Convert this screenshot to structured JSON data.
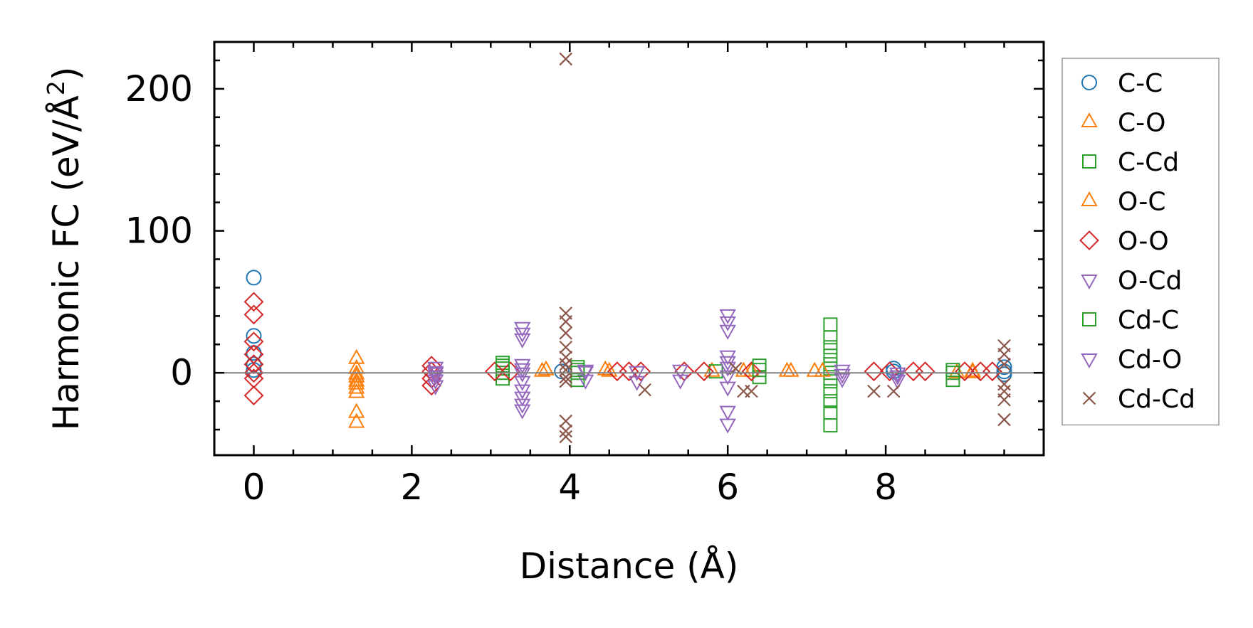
{
  "chart_data": {
    "type": "scatter",
    "title": "",
    "xlabel": "Distance (Å)",
    "ylabel": "Harmonic FC (eV/Å",
    "ylabel_sup": "2",
    "ylabel_end": ")",
    "xlim": [
      -0.5,
      10.0
    ],
    "ylim": [
      -58,
      233
    ],
    "xticks": [
      0,
      2,
      4,
      6,
      8
    ],
    "xtick_labels": [
      "0",
      "2",
      "4",
      "6",
      "8"
    ],
    "yticks": [
      0,
      100,
      200
    ],
    "ytick_labels": [
      "0",
      "100",
      "200"
    ],
    "x_minor_step": 0.5,
    "y_minor_step": 20,
    "zero_line": 0,
    "legend_location": "right-outside",
    "series": [
      {
        "name": "C-C",
        "marker": "circle",
        "color": "#1f77b4",
        "points": [
          [
            0,
            67
          ],
          [
            0,
            26
          ],
          [
            0,
            14
          ],
          [
            0,
            6
          ],
          [
            0,
            2
          ],
          [
            8.1,
            3
          ],
          [
            8.1,
            1
          ],
          [
            9.5,
            4
          ],
          [
            9.5,
            1
          ],
          [
            9.5,
            -1
          ],
          [
            3.9,
            1
          ]
        ]
      },
      {
        "name": "C-O",
        "marker": "triangle-up",
        "color": "#ff7f0e",
        "points": [
          [
            1.3,
            10
          ],
          [
            1.3,
            3
          ],
          [
            1.3,
            -1
          ],
          [
            1.3,
            -3
          ],
          [
            1.3,
            -6
          ],
          [
            1.3,
            -8
          ],
          [
            1.3,
            -11
          ],
          [
            1.3,
            -14
          ],
          [
            1.3,
            -28
          ],
          [
            1.3,
            -35
          ],
          [
            3.65,
            1
          ],
          [
            4.45,
            2
          ],
          [
            5.8,
            1
          ],
          [
            6.2,
            1
          ],
          [
            6.75,
            1
          ],
          [
            7.1,
            1
          ],
          [
            8.9,
            0
          ],
          [
            9.1,
            0
          ]
        ]
      },
      {
        "name": "C-Cd",
        "marker": "square",
        "color": "#2ca02c",
        "points": [
          [
            3.15,
            7
          ],
          [
            3.15,
            3
          ],
          [
            3.15,
            0
          ],
          [
            3.15,
            -4
          ],
          [
            4.1,
            4
          ],
          [
            4.1,
            0
          ],
          [
            4.1,
            -5
          ],
          [
            5.85,
            1
          ],
          [
            6.4,
            5
          ],
          [
            6.4,
            -3
          ],
          [
            7.3,
            34
          ],
          [
            7.3,
            25
          ],
          [
            7.3,
            12
          ],
          [
            7.3,
            6
          ],
          [
            7.3,
            0
          ],
          [
            7.3,
            -6
          ],
          [
            7.3,
            -13
          ],
          [
            7.3,
            -20
          ],
          [
            7.3,
            -28
          ],
          [
            7.3,
            -37
          ],
          [
            8.85,
            2
          ],
          [
            8.85,
            -5
          ]
        ]
      },
      {
        "name": "O-C",
        "marker": "triangle-up",
        "color": "#ff7f0e",
        "points": [
          [
            3.7,
            2
          ],
          [
            4.5,
            1
          ],
          [
            6.3,
            1
          ],
          [
            6.8,
            1
          ],
          [
            7.2,
            1
          ],
          [
            9.1,
            1
          ]
        ]
      },
      {
        "name": "O-O",
        "marker": "diamond",
        "color": "#d62728",
        "points": [
          [
            0,
            50
          ],
          [
            0,
            41
          ],
          [
            0,
            22
          ],
          [
            0,
            13
          ],
          [
            0,
            6
          ],
          [
            0,
            0
          ],
          [
            0,
            -4
          ],
          [
            0,
            -16
          ],
          [
            2.25,
            5
          ],
          [
            2.25,
            1
          ],
          [
            2.25,
            -4
          ],
          [
            2.25,
            -9
          ],
          [
            3.05,
            1
          ],
          [
            3.25,
            1
          ],
          [
            4.6,
            1
          ],
          [
            4.75,
            1
          ],
          [
            4.9,
            1
          ],
          [
            5.45,
            1
          ],
          [
            5.7,
            1
          ],
          [
            6.3,
            1
          ],
          [
            7.85,
            1
          ],
          [
            8.05,
            1
          ],
          [
            8.35,
            1
          ],
          [
            8.5,
            1
          ],
          [
            9.0,
            1
          ],
          [
            9.2,
            1
          ],
          [
            9.35,
            1
          ]
        ]
      },
      {
        "name": "O-Cd",
        "marker": "triangle-down",
        "color": "#9467bd",
        "points": [
          [
            2.3,
            4
          ],
          [
            2.3,
            1
          ],
          [
            2.3,
            -2
          ],
          [
            2.3,
            -5
          ],
          [
            2.3,
            -9
          ],
          [
            3.4,
            32
          ],
          [
            3.4,
            28
          ],
          [
            3.4,
            24
          ],
          [
            3.4,
            6
          ],
          [
            3.4,
            0
          ],
          [
            3.4,
            -6
          ],
          [
            3.4,
            -12
          ],
          [
            3.4,
            -17
          ],
          [
            3.4,
            -22
          ],
          [
            3.4,
            -26
          ],
          [
            4.2,
            2
          ],
          [
            4.2,
            -5
          ],
          [
            4.85,
            1
          ],
          [
            4.85,
            -6
          ],
          [
            5.4,
            2
          ],
          [
            5.4,
            -5
          ],
          [
            6.0,
            41
          ],
          [
            6.0,
            36
          ],
          [
            6.0,
            30
          ],
          [
            6.0,
            12
          ],
          [
            6.0,
            4
          ],
          [
            6.0,
            -2
          ],
          [
            6.0,
            -10
          ],
          [
            6.0,
            -27
          ],
          [
            6.0,
            -36
          ],
          [
            7.45,
            2
          ],
          [
            7.45,
            -4
          ],
          [
            8.15,
            0
          ],
          [
            8.15,
            -5
          ]
        ]
      },
      {
        "name": "Cd-C",
        "marker": "square",
        "color": "#2ca02c",
        "points": [
          [
            3.15,
            5
          ],
          [
            4.1,
            2
          ],
          [
            6.4,
            2
          ],
          [
            7.3,
            18
          ],
          [
            8.85,
            0
          ]
        ]
      },
      {
        "name": "Cd-O",
        "marker": "triangle-down",
        "color": "#9467bd",
        "points": [
          [
            2.3,
            0
          ],
          [
            3.4,
            3
          ],
          [
            4.2,
            1
          ],
          [
            6.0,
            8
          ],
          [
            7.45,
            -1
          ],
          [
            8.15,
            -2
          ]
        ]
      },
      {
        "name": "Cd-Cd",
        "marker": "x",
        "color": "#8c564b",
        "points": [
          [
            3.95,
            221
          ],
          [
            3.95,
            42
          ],
          [
            3.95,
            36
          ],
          [
            3.95,
            28
          ],
          [
            3.95,
            18
          ],
          [
            3.95,
            11
          ],
          [
            3.95,
            6
          ],
          [
            3.95,
            2
          ],
          [
            3.95,
            -3
          ],
          [
            3.95,
            -6
          ],
          [
            3.95,
            -34
          ],
          [
            3.95,
            -41
          ],
          [
            3.95,
            -45
          ],
          [
            4.95,
            -12
          ],
          [
            6.1,
            3
          ],
          [
            6.2,
            -13
          ],
          [
            6.3,
            -13
          ],
          [
            7.85,
            -13
          ],
          [
            8.1,
            -13
          ],
          [
            9.5,
            19
          ],
          [
            9.5,
            13
          ],
          [
            9.5,
            6
          ],
          [
            9.5,
            -8
          ],
          [
            9.5,
            -13
          ],
          [
            9.5,
            -19
          ],
          [
            9.5,
            -33
          ]
        ]
      }
    ]
  }
}
